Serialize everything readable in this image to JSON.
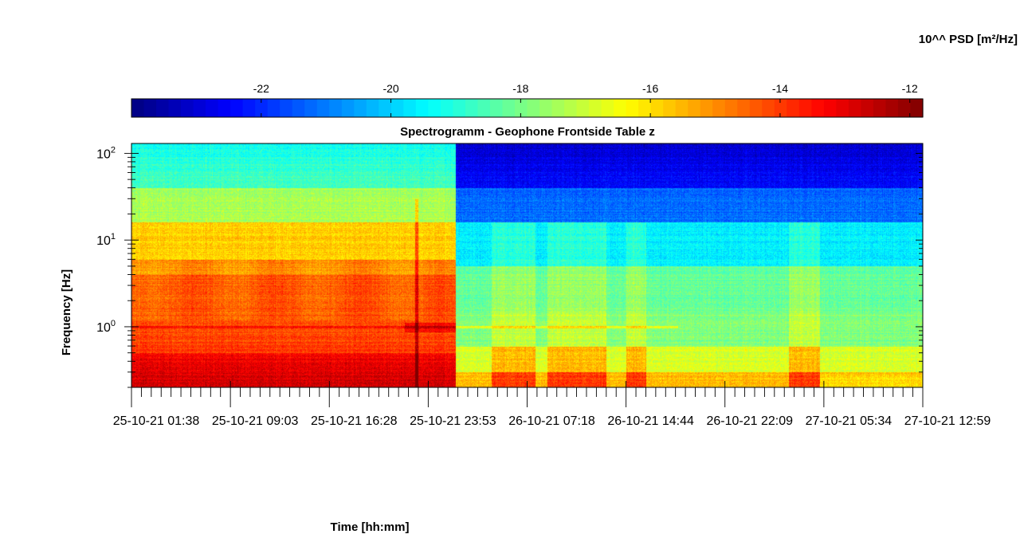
{
  "chart_data": {
    "type": "heatmap",
    "title": "Spectrogramm - Geophone Frontside Table z",
    "xlabel": "Time [hh:mm]",
    "ylabel": "Frequency [Hz]",
    "y_scale": "log",
    "ylim": [
      0.2,
      130
    ],
    "y_ticks": [
      {
        "value": 1,
        "label": "10^0"
      },
      {
        "value": 10,
        "label": "10^1"
      },
      {
        "value": 100,
        "label": "10^2"
      }
    ],
    "x_ticks": [
      "25-10-21 01:38",
      "25-10-21 09:03",
      "25-10-21 16:28",
      "25-10-21 23:53",
      "26-10-21 07:18",
      "26-10-21 14:44",
      "26-10-21 22:09",
      "27-10-21 05:34",
      "27-10-21 12:59"
    ],
    "colorbar": {
      "label": "10^^ PSD [m²/Hz]",
      "range": [
        -24,
        -11.8
      ],
      "ticks": [
        -22,
        -20,
        -18,
        -16,
        -14,
        -12
      ],
      "colormap": "jet",
      "placement": "top"
    },
    "annotations": {
      "regime_change_time": "25-10-21 ~23:00",
      "spike_time": "25-10-21 ~21:00",
      "line_frequency_hz": 1.0
    },
    "grid": false
  }
}
